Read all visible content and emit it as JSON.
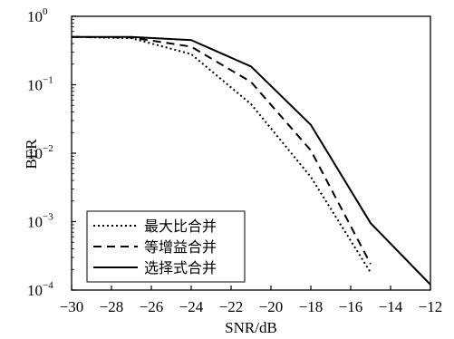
{
  "chart_data": {
    "type": "line",
    "xlabel": "SNR/dB",
    "ylabel": "BER",
    "xlim": [
      -30,
      -12
    ],
    "ylim": [
      0.0001,
      1
    ],
    "yscale": "log",
    "x_ticks": [
      -30,
      -28,
      -26,
      -24,
      -22,
      -20,
      -18,
      -16,
      -14,
      -12
    ],
    "x_tick_labels": [
      "−30",
      "−28",
      "−26",
      "−24",
      "−22",
      "−20",
      "−18",
      "−16",
      "−14",
      "−12"
    ],
    "y_ticks": [
      {
        "value": 1,
        "base": "10",
        "exp": "0"
      },
      {
        "value": 0.1,
        "base": "10",
        "exp": "−1"
      },
      {
        "value": 0.01,
        "base": "10",
        "exp": "−2"
      },
      {
        "value": 0.001,
        "base": "10",
        "exp": "−3"
      },
      {
        "value": 0.0001,
        "base": "10",
        "exp": "−4"
      }
    ],
    "grid": false,
    "legend_position": "bottom-left",
    "series": [
      {
        "name": "最大比合并",
        "style": "dotted",
        "x": [
          -30,
          -27,
          -24,
          -21,
          -18,
          -15
        ],
        "y": [
          0.5,
          0.48,
          0.28,
          0.052,
          0.0045,
          0.00018
        ]
      },
      {
        "name": "等增益合并",
        "style": "dashed",
        "x": [
          -30,
          -27,
          -24,
          -21,
          -18,
          -15
        ],
        "y": [
          0.5,
          0.49,
          0.36,
          0.11,
          0.011,
          0.00024
        ]
      },
      {
        "name": "选择式合并",
        "style": "solid",
        "x": [
          -30,
          -27,
          -24,
          -21,
          -18,
          -15,
          -12
        ],
        "y": [
          0.5,
          0.5,
          0.45,
          0.185,
          0.026,
          0.00095,
          0.00012
        ]
      }
    ]
  }
}
